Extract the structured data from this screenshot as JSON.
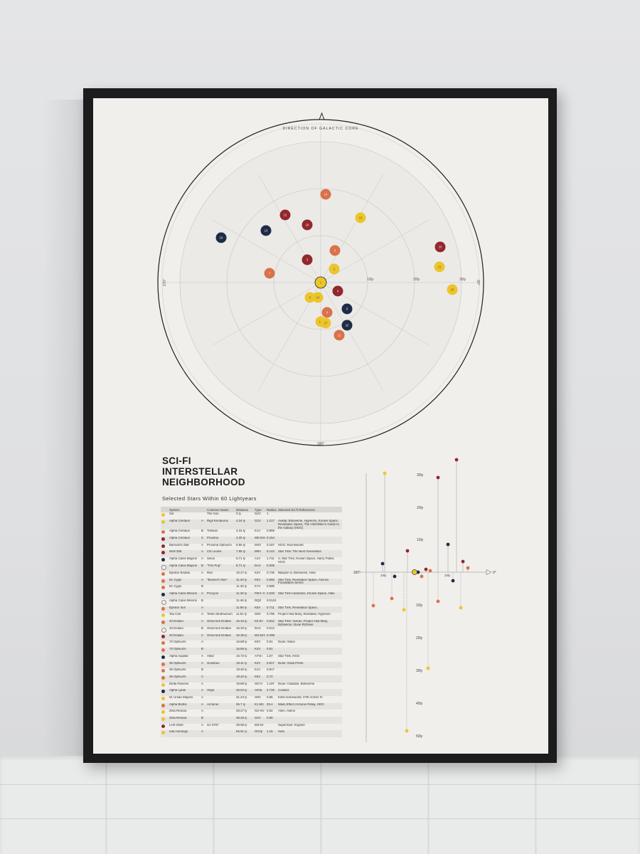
{
  "poster": {
    "title_lines": [
      "SCI-FI",
      "INTERSTELLAR",
      "NEIGHBORHOOD"
    ],
    "subtitle": "Selected Stars Within 60 Lightyears"
  },
  "colors": {
    "yellow": "#ecc52b",
    "orange": "#d9724a",
    "red": "#93272e",
    "navy": "#1d2c47",
    "white": "#f4f2ef"
  },
  "radar": {
    "top_label": "DIRECTION OF GALACTIC CORE",
    "left_label": "270°",
    "right_label": "90°",
    "bottom_label": "180°",
    "ring_labels": [
      "10ly",
      "20ly",
      "30ly"
    ],
    "stars": [
      {
        "n": "1",
        "color": "yellow"
      },
      {
        "n": "2",
        "color": "yellow"
      },
      {
        "n": "3",
        "color": "red"
      },
      {
        "n": "4",
        "color": "red"
      },
      {
        "n": "5",
        "color": "yellow"
      },
      {
        "n": "6",
        "color": "orange"
      },
      {
        "n": "7",
        "color": "orange"
      },
      {
        "n": "8",
        "color": "navy"
      },
      {
        "n": "9",
        "color": "orange"
      },
      {
        "n": "10",
        "color": "yellow"
      },
      {
        "n": "11",
        "color": "orange"
      },
      {
        "n": "12",
        "color": "red"
      },
      {
        "n": "13",
        "color": "navy"
      },
      {
        "n": "14",
        "color": "orange"
      },
      {
        "n": "15",
        "color": "yellow"
      },
      {
        "n": "16",
        "color": "navy"
      },
      {
        "n": "17",
        "color": "yellow"
      },
      {
        "n": "18",
        "color": "red"
      },
      {
        "n": "19",
        "color": "yellow"
      },
      {
        "n": "20",
        "color": "red"
      },
      {
        "n": "21",
        "color": "yellow"
      },
      {
        "n": "22",
        "color": "navy"
      },
      {
        "n": "23",
        "color": "yellow"
      }
    ]
  },
  "side_chart": {
    "left_label": "180°",
    "right_label": "0°",
    "up_ticks": [
      "30ly",
      "20ly",
      "10ly"
    ],
    "down_ticks": [
      "10ly",
      "20ly",
      "30ly",
      "40ly",
      "50ly"
    ],
    "near_ticks": [
      "10ly",
      "10ly"
    ]
  },
  "table": {
    "headers": [
      "",
      "System",
      "",
      "Common Name",
      "Distance",
      "Type",
      "Radius",
      "Selected Sci-fi References"
    ],
    "rows": [
      {
        "c": "yellow",
        "system": "Sol",
        "comp": "",
        "name": "The Sun",
        "dist": "0 ly",
        "type": "G2V",
        "radius": "1",
        "refs": ""
      },
      {
        "c": "yellow",
        "system": "Alpha Centauri",
        "comp": "A",
        "name": "Rigil Kentaurus",
        "dist": "4.34 ly",
        "type": "G2V",
        "radius": "1.217",
        "refs": "Avatar, Bobiverse, Hyperion, Known Space, Revelation Space, The Hitchhiker's Guide to the Galaxy (HGG)"
      },
      {
        "c": "orange",
        "system": "Alpha Centauri",
        "comp": "B",
        "name": "Toliman",
        "dist": "4.34 ly",
        "type": "K1V",
        "radius": "0.859",
        "refs": ""
      },
      {
        "c": "red",
        "system": "Alpha Centauri",
        "comp": "C",
        "name": "Proxima",
        "dist": "4.25 ly",
        "type": "M5.5Ve",
        "radius": "0.154",
        "refs": ""
      },
      {
        "c": "red",
        "system": "Barnard's Star",
        "comp": "A",
        "name": "Proxima Ophiuchi",
        "dist": "5.96 ly",
        "type": "M4V",
        "radius": "0.187",
        "refs": "HGG, Rocheworld"
      },
      {
        "c": "red",
        "system": "Wolf 359",
        "comp": "A",
        "name": "CN Leonis",
        "dist": "7.85 ly",
        "type": "M6V",
        "radius": "0.144",
        "refs": "Star Trek: The Next Generation"
      },
      {
        "c": "navy",
        "system": "Alpha Canis Majoris",
        "comp": "A",
        "name": "Sirius",
        "dist": "8.71 ly",
        "type": "A1V",
        "radius": "1.711",
        "refs": "V, Star Trek, Known Space, Harry Potter, HGG"
      },
      {
        "c": "white",
        "system": "Alpha Canis Majoris",
        "comp": "B",
        "name": "\"The Pup\"",
        "dist": "8.71 ly",
        "type": "DA2",
        "radius": "0.008",
        "refs": ""
      },
      {
        "c": "orange",
        "system": "Epsilon Eridani",
        "comp": "A",
        "name": "Ran",
        "dist": "10.47 ly",
        "type": "K2V",
        "radius": "0.735",
        "refs": "Babylon 5, Bobiverse, Halo"
      },
      {
        "c": "orange",
        "system": "61 Cygni",
        "comp": "A",
        "name": "\"Bessel's Star\"",
        "dist": "11.40 ly",
        "type": "K5V",
        "radius": "0.665",
        "refs": "Star Trek, Revelation Space, Asimov Foundation Series"
      },
      {
        "c": "orange",
        "system": "61 Cygni",
        "comp": "B",
        "name": "",
        "dist": "11.40 ly",
        "type": "K7V",
        "radius": "0.595",
        "refs": ""
      },
      {
        "c": "navy",
        "system": "Alpha Canis Minoris",
        "comp": "A",
        "name": "Procyon",
        "dist": "11.46 ly",
        "type": "F5IV–V",
        "radius": "2.048",
        "refs": "Star Trek Andorians, Known Space, Halo"
      },
      {
        "c": "white",
        "system": "Alpha Canis Minoris",
        "comp": "B",
        "name": "",
        "dist": "11.46 ly",
        "type": "DQZ",
        "radius": "0.0124",
        "refs": ""
      },
      {
        "c": "orange",
        "system": "Epsilon Indi",
        "comp": "A",
        "name": "",
        "dist": "11.86 ly",
        "type": "K5V",
        "radius": "0.711",
        "refs": "Star Trek, Revelation Space,"
      },
      {
        "c": "yellow",
        "system": "Tau Ceti",
        "comp": "A",
        "name": "Tertia Struthionum",
        "dist": "11.91 ly",
        "type": "G8V",
        "radius": "0.796",
        "refs": "Project Hail Mary, Worldwar, Hyperion"
      },
      {
        "c": "orange",
        "system": "40 Eridani",
        "comp": "A",
        "name": "Omicron2 Eridani",
        "dist": "16.34 ly",
        "type": "K0.5V",
        "radius": "0.812",
        "refs": "Star Trek: Vulcan, Project Hail Mary, Bobiverse, Dune Richese"
      },
      {
        "c": "white",
        "system": "40 Eridani",
        "comp": "B",
        "name": "Omicron2 Eridani",
        "dist": "16.33 ly",
        "type": "DA4",
        "radius": "0.014",
        "refs": ""
      },
      {
        "c": "red",
        "system": "40 Eridani",
        "comp": "C",
        "name": "Omicron2 Eridani",
        "dist": "16.35 ly",
        "type": "M4.5eV",
        "radius": "0.298",
        "refs": ""
      },
      {
        "c": "orange",
        "system": "70 Ophiuchi",
        "comp": "A",
        "name": "",
        "dist": "16.68 ly",
        "type": "K0V",
        "radius": "0.91",
        "refs": "Dune: Sikun"
      },
      {
        "c": "orange",
        "system": "70 Ophiuchi",
        "comp": "B",
        "name": "",
        "dist": "16.66 ly",
        "type": "K4V",
        "radius": "0.91",
        "refs": ""
      },
      {
        "c": "navy",
        "system": "Alpha Aquilae",
        "comp": "A",
        "name": "Altair",
        "dist": "16.73 ly",
        "type": "A7Vn",
        "radius": "1.57",
        "refs": "Star Trek, HGG"
      },
      {
        "c": "orange",
        "system": "36 Ophiuchi",
        "comp": "A",
        "name": "Guniibuu",
        "dist": "19.41 ly",
        "type": "K2V",
        "radius": "0.817",
        "refs": "Dune: Gwdi Prime"
      },
      {
        "c": "orange",
        "system": "36 Ophiuchi",
        "comp": "B",
        "name": "",
        "dist": "19.40 ly",
        "type": "K1V",
        "radius": "0.817",
        "refs": ""
      },
      {
        "c": "orange",
        "system": "36 Ophiuchi",
        "comp": "C",
        "name": "",
        "dist": "19.42 ly",
        "type": "K5V",
        "radius": "0.72",
        "refs": ""
      },
      {
        "c": "yellow",
        "system": "Delta Pavonis",
        "comp": "A",
        "name": "",
        "dist": "19.88 ly",
        "type": "G8 IV",
        "radius": "1.197",
        "refs": "Dune: Caladan, Bobiverse"
      },
      {
        "c": "navy",
        "system": "Alpha Lyrae",
        "comp": "A",
        "name": "Vega",
        "dist": "25.04 ly",
        "type": "A0Va",
        "radius": "2.726",
        "refs": "Contact"
      },
      {
        "c": "yellow",
        "system": "61 Ursae Majoris",
        "comp": "A",
        "name": "",
        "dist": "31.24 ly",
        "type": "G8V",
        "radius": "0.86",
        "refs": "Klinb homeworld, STE Archer IV"
      },
      {
        "c": "orange",
        "system": "Alpha Boötis",
        "comp": "A",
        "name": "Arcturus",
        "dist": "36.7 ly",
        "type": "K1.5III",
        "radius": "25.4",
        "refs": "Mass Effect Arcturus Relay, HGG"
      },
      {
        "c": "yellow",
        "system": "Zeta Reticuli",
        "comp": "A",
        "name": "",
        "dist": "39.27 ly",
        "type": "G3–5V",
        "radius": "0.92",
        "refs": "Alien, Aliens"
      },
      {
        "c": "yellow",
        "system": "Zeta Reticuli",
        "comp": "B",
        "name": "",
        "dist": "39.29 ly",
        "type": "G2V",
        "radius": "0.99",
        "refs": ""
      },
      {
        "c": "red",
        "system": "LHS 2520",
        "comp": "A",
        "name": "GJ 3707",
        "dist": "39.98 ly",
        "type": "M3.5V",
        "radius": "",
        "refs": "Superman: Krypton"
      },
      {
        "c": "yellow",
        "system": "Iota Horologii",
        "comp": "A",
        "name": "",
        "dist": "56.61 ly",
        "type": "G0Vp",
        "radius": "1.16",
        "refs": "Halo"
      }
    ]
  }
}
